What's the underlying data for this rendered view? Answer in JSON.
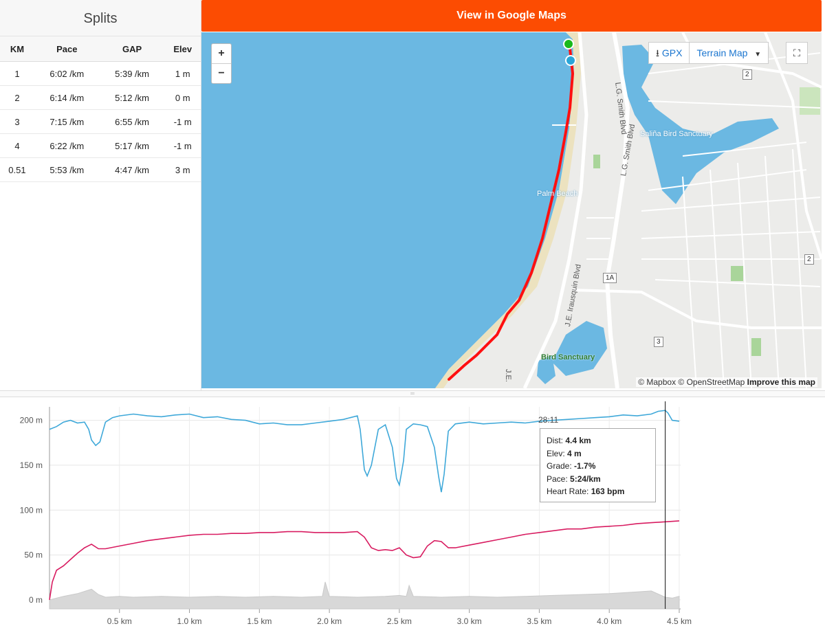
{
  "splits": {
    "title": "Splits",
    "columns": [
      "KM",
      "Pace",
      "GAP",
      "Elev"
    ],
    "rows": [
      {
        "km": "1",
        "pace": "6:02 /km",
        "gap": "5:39 /km",
        "elev": "1 m"
      },
      {
        "km": "2",
        "pace": "6:14 /km",
        "gap": "5:12 /km",
        "elev": "0 m"
      },
      {
        "km": "3",
        "pace": "7:15 /km",
        "gap": "6:55 /km",
        "elev": "-1 m"
      },
      {
        "km": "4",
        "pace": "6:22 /km",
        "gap": "5:17 /km",
        "elev": "-1 m"
      },
      {
        "km": "0.51",
        "pace": "5:53 /km",
        "gap": "4:47 /km",
        "elev": "3 m"
      }
    ]
  },
  "map": {
    "google_maps_button": "View in Google Maps",
    "zoom_in": "+",
    "zoom_out": "−",
    "gpx_label": "GPX",
    "terrain_label": "Terrain Map",
    "attribution_1": "© Mapbox © OpenStreetMap",
    "attribution_2": "Improve this map",
    "labels": {
      "lg_smith_1": "L.G. Smith Blvd",
      "lg_smith_2": "L.G. Smith Blvd",
      "salina": "Saliña Bird Sanctuary",
      "palm_beach": "Palm Beach",
      "irausquin": "J.E. Irausquin Blvd",
      "bird_sanctuary": "Bird Sanctuary",
      "je": "J.E."
    },
    "shields": {
      "r2a": "2",
      "r2b": "2",
      "r1a": "1A",
      "r3": "3"
    },
    "colors": {
      "water": "#6bb8e2",
      "land": "#ececea",
      "route": "#ff1010",
      "start": "#1ab91a",
      "end": "#2aa6d8"
    }
  },
  "chart": {
    "time_label": "28:11",
    "tooltip": {
      "dist_label": "Dist:",
      "dist_value": "4.4 km",
      "elev_label": "Elev:",
      "elev_value": "4 m",
      "grade_label": "Grade:",
      "grade_value": "-1.7%",
      "pace_label": "Pace:",
      "pace_value": "5:24/km",
      "hr_label": "Heart Rate:",
      "hr_value": "163 bpm"
    },
    "colors": {
      "heart_rate": "#3ea8d9",
      "pace": "#d81b60",
      "elevation": "#d8d8d8"
    }
  },
  "chart_data": {
    "type": "line",
    "x_unit": "km",
    "xlim": [
      0,
      4.51
    ],
    "ylim": [
      -10,
      215
    ],
    "x_ticks": [
      {
        "v": 0.5,
        "label": "0.5 km"
      },
      {
        "v": 1.0,
        "label": "1.0 km"
      },
      {
        "v": 1.5,
        "label": "1.5 km"
      },
      {
        "v": 2.0,
        "label": "2.0 km"
      },
      {
        "v": 2.5,
        "label": "2.5 km"
      },
      {
        "v": 3.0,
        "label": "3.0 km"
      },
      {
        "v": 3.5,
        "label": "3.5 km"
      },
      {
        "v": 4.0,
        "label": "4.0 km"
      },
      {
        "v": 4.5,
        "label": "4.5 km"
      }
    ],
    "y_ticks": [
      {
        "v": 0,
        "label": "0 m"
      },
      {
        "v": 50,
        "label": "50 m"
      },
      {
        "v": 100,
        "label": "100 m"
      },
      {
        "v": 150,
        "label": "150 m"
      },
      {
        "v": 200,
        "label": "200 m"
      }
    ],
    "cursor_x": 4.4,
    "series": [
      {
        "key": "heart_rate",
        "x": [
          0,
          0.05,
          0.1,
          0.15,
          0.2,
          0.25,
          0.28,
          0.3,
          0.33,
          0.36,
          0.4,
          0.45,
          0.5,
          0.6,
          0.7,
          0.8,
          0.9,
          1.0,
          1.1,
          1.2,
          1.3,
          1.4,
          1.5,
          1.6,
          1.7,
          1.8,
          1.9,
          2.0,
          2.1,
          2.15,
          2.2,
          2.22,
          2.25,
          2.27,
          2.3,
          2.35,
          2.4,
          2.45,
          2.48,
          2.5,
          2.53,
          2.55,
          2.6,
          2.65,
          2.7,
          2.75,
          2.78,
          2.8,
          2.82,
          2.85,
          2.9,
          3.0,
          3.1,
          3.2,
          3.3,
          3.4,
          3.5,
          3.6,
          3.7,
          3.8,
          3.9,
          4.0,
          4.1,
          4.2,
          4.3,
          4.35,
          4.4,
          4.42,
          4.45,
          4.5
        ],
        "y": [
          190,
          193,
          198,
          200,
          197,
          198,
          190,
          178,
          172,
          176,
          198,
          203,
          205,
          207,
          205,
          204,
          206,
          207,
          203,
          204,
          201,
          200,
          196,
          197,
          195,
          195,
          197,
          199,
          201,
          203,
          205,
          190,
          145,
          138,
          150,
          190,
          195,
          170,
          135,
          128,
          155,
          190,
          196,
          195,
          193,
          170,
          138,
          120,
          140,
          188,
          196,
          198,
          196,
          197,
          198,
          197,
          199,
          200,
          201,
          202,
          203,
          204,
          206,
          205,
          207,
          210,
          211,
          208,
          200,
          199
        ]
      },
      {
        "key": "pace",
        "x": [
          0,
          0.02,
          0.05,
          0.1,
          0.15,
          0.2,
          0.25,
          0.3,
          0.35,
          0.4,
          0.5,
          0.6,
          0.7,
          0.8,
          0.9,
          1.0,
          1.1,
          1.2,
          1.3,
          1.4,
          1.5,
          1.6,
          1.7,
          1.8,
          1.9,
          2.0,
          2.1,
          2.2,
          2.25,
          2.3,
          2.35,
          2.4,
          2.45,
          2.5,
          2.55,
          2.6,
          2.65,
          2.7,
          2.75,
          2.8,
          2.85,
          2.9,
          3.0,
          3.1,
          3.2,
          3.3,
          3.4,
          3.5,
          3.6,
          3.7,
          3.8,
          3.9,
          4.0,
          4.1,
          4.2,
          4.3,
          4.4,
          4.5
        ],
        "y": [
          0,
          20,
          33,
          38,
          45,
          52,
          58,
          62,
          57,
          57,
          60,
          63,
          66,
          68,
          70,
          72,
          73,
          73,
          74,
          74,
          75,
          75,
          76,
          76,
          75,
          75,
          75,
          76,
          70,
          58,
          55,
          56,
          55,
          58,
          50,
          47,
          48,
          60,
          66,
          65,
          58,
          58,
          61,
          64,
          67,
          70,
          73,
          75,
          77,
          79,
          79,
          81,
          82,
          83,
          85,
          86,
          87,
          88
        ]
      },
      {
        "key": "elevation",
        "x": [
          0,
          0.1,
          0.2,
          0.3,
          0.35,
          0.4,
          0.5,
          0.6,
          0.8,
          1.0,
          1.2,
          1.4,
          1.6,
          1.8,
          1.95,
          1.97,
          2.0,
          2.2,
          2.4,
          2.5,
          2.55,
          2.57,
          2.6,
          2.8,
          3.0,
          3.2,
          3.4,
          3.6,
          3.8,
          4.0,
          4.2,
          4.3,
          4.4,
          4.45,
          4.5
        ],
        "y": [
          0,
          4,
          7,
          12,
          6,
          3,
          4,
          3,
          4,
          3,
          4,
          3,
          4,
          3,
          4,
          20,
          4,
          3,
          4,
          5,
          4,
          16,
          4,
          3,
          4,
          3,
          4,
          5,
          6,
          7,
          9,
          10,
          3,
          2,
          4
        ]
      }
    ]
  }
}
